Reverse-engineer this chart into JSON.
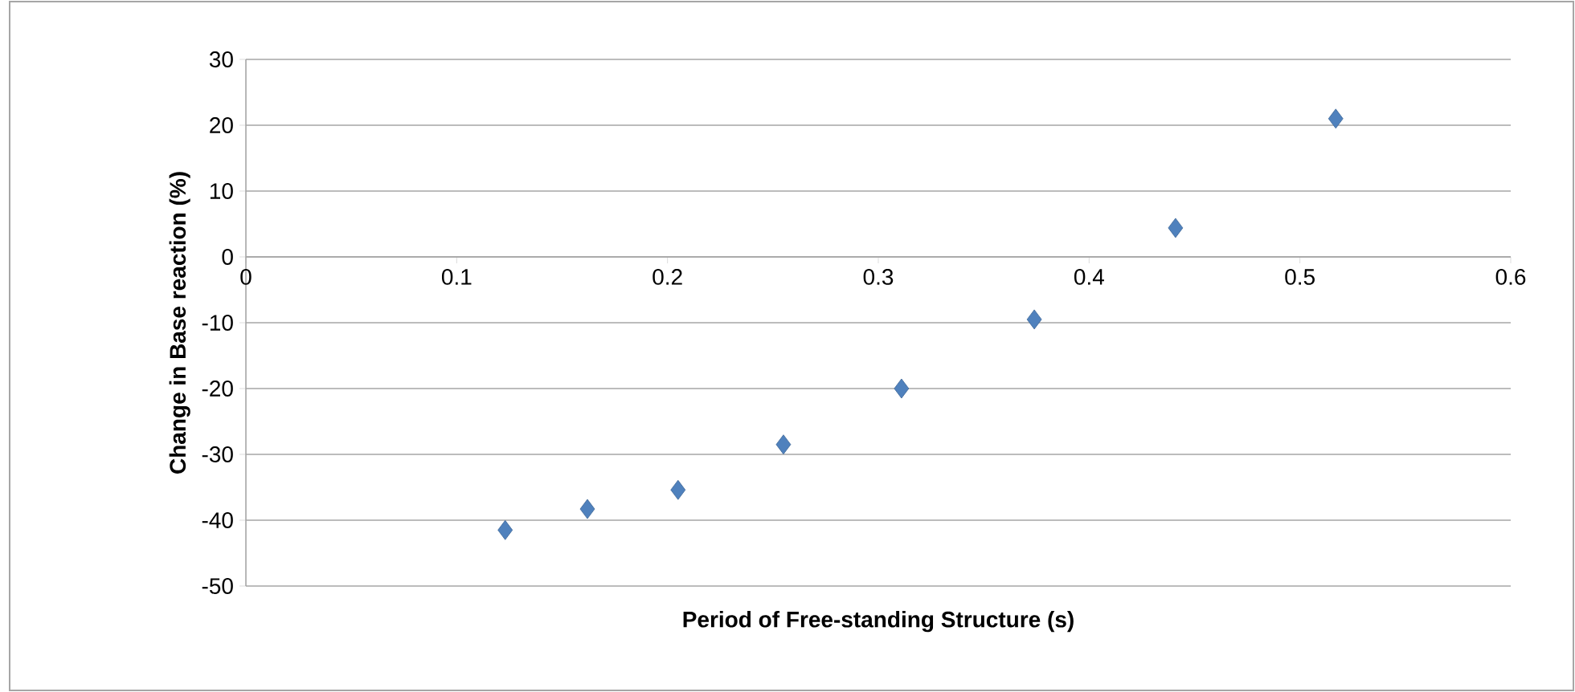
{
  "chart_data": {
    "type": "scatter",
    "xlabel": "Period of Free-standing Structure (s)",
    "ylabel": "Change in Base reaction (%)",
    "x": [
      0.123,
      0.162,
      0.205,
      0.255,
      0.311,
      0.374,
      0.441,
      0.517
    ],
    "values": [
      -41.5,
      -38.3,
      -35.4,
      -28.5,
      -20,
      -9.5,
      4.4,
      21
    ],
    "color": "#4f81bd",
    "marker": "diamond",
    "xlim": [
      0,
      0.6
    ],
    "xticks": [
      0,
      0.1,
      0.2,
      0.3,
      0.4,
      0.5,
      0.6
    ],
    "ylim": [
      -50,
      30
    ],
    "yticks": [
      -50,
      -40,
      -30,
      -20,
      -10,
      0,
      10,
      20,
      30
    ],
    "grid": "y"
  }
}
